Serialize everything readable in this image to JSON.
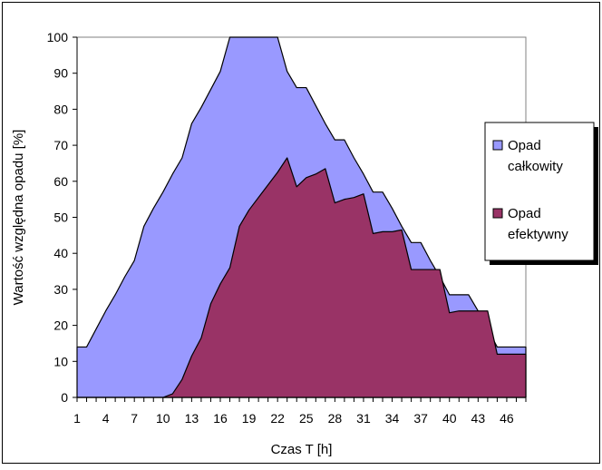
{
  "chart_data": {
    "type": "area",
    "title": "",
    "xlabel": "Czas T [h]",
    "ylabel": "Wartość względna opadu [%]",
    "ylim": [
      0,
      100
    ],
    "yticks": [
      0,
      10,
      20,
      30,
      40,
      50,
      60,
      70,
      80,
      90,
      100
    ],
    "xticks": [
      1,
      4,
      7,
      10,
      13,
      16,
      19,
      22,
      25,
      28,
      31,
      34,
      37,
      40,
      43,
      46
    ],
    "x": [
      1,
      2,
      3,
      4,
      5,
      6,
      7,
      8,
      9,
      10,
      11,
      12,
      13,
      14,
      15,
      16,
      17,
      18,
      19,
      20,
      21,
      22,
      23,
      24,
      25,
      26,
      27,
      28,
      29,
      30,
      31,
      32,
      33,
      34,
      35,
      36,
      37,
      38,
      39,
      40,
      41,
      42,
      43,
      44,
      45,
      46,
      47,
      48
    ],
    "grid": false,
    "legend_position": "right",
    "series": [
      {
        "name": "Opad całkowity",
        "color": "#9999ff",
        "values": [
          14,
          14,
          19,
          24,
          28.5,
          33.5,
          38,
          47.5,
          52.5,
          57,
          62,
          66.5,
          76,
          80.5,
          85.5,
          90.5,
          100,
          100,
          100,
          100,
          100,
          100,
          90.5,
          86,
          86,
          81,
          76,
          71.5,
          71.5,
          66.5,
          62,
          57,
          57,
          52.5,
          47.5,
          43,
          43,
          38,
          33.5,
          28.5,
          28.5,
          28.5,
          24,
          19,
          14,
          14,
          14,
          14
        ]
      },
      {
        "name": "Opad efektywny",
        "color": "#993366",
        "values": [
          0,
          0,
          0,
          0,
          0,
          0,
          0,
          0,
          0,
          0,
          1,
          5,
          11.5,
          16.5,
          26,
          31.5,
          36,
          47.5,
          52,
          55.5,
          59,
          62.5,
          66.5,
          58.5,
          61,
          62,
          63.5,
          54,
          55,
          55.5,
          56.5,
          45.5,
          46,
          46,
          46.5,
          35.5,
          35.5,
          35.5,
          35.5,
          23.5,
          24,
          24,
          24,
          24,
          12,
          12,
          12,
          12
        ]
      }
    ]
  }
}
